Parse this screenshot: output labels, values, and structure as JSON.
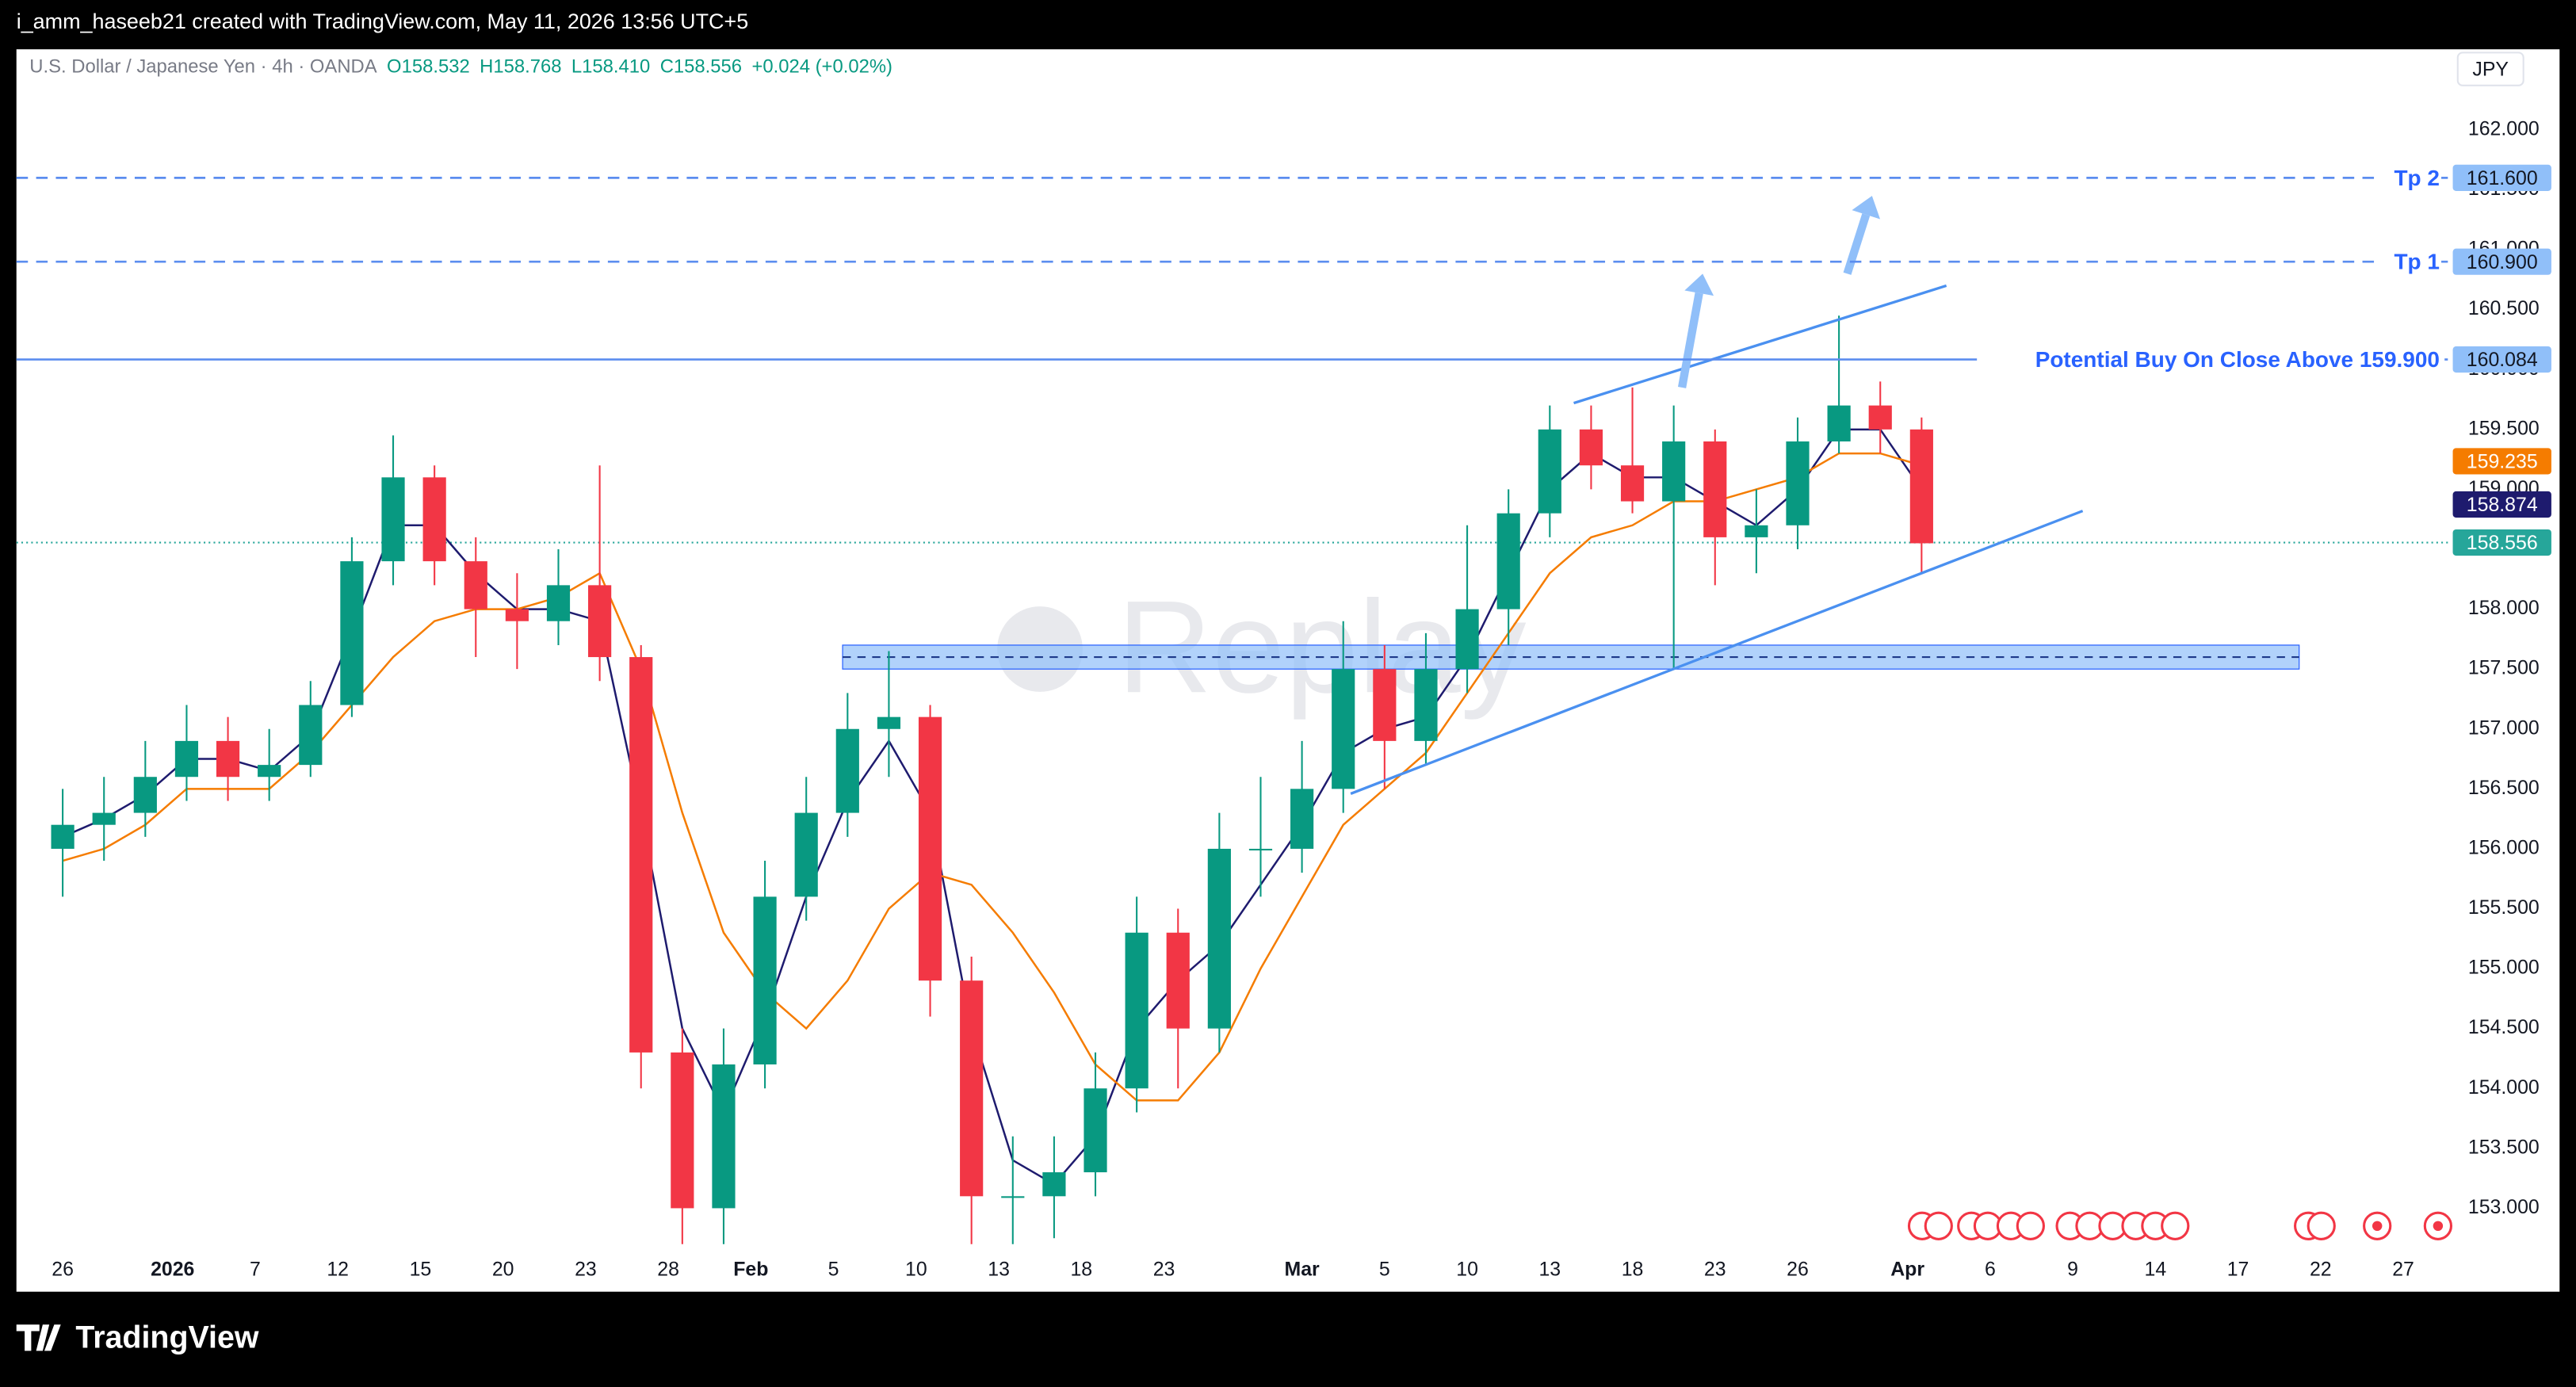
{
  "header": "i_amm_haseeb21 created with TradingView.com, May 11, 2026 13:56 UTC+5",
  "footer": "TradingView",
  "chart_data": {
    "type": "candlestick",
    "legend": {
      "symbol": "U.S. Dollar / Japanese Yen · 4h · OANDA",
      "open": "O158.532",
      "high": "H158.768",
      "low": "L158.410",
      "close": "C158.556",
      "change": "+0.024 (+0.02%)"
    },
    "currency": "JPY",
    "watermark": "Replay",
    "up_color": "#089981",
    "down_color": "#f23645",
    "x": [
      0,
      0.5,
      1,
      1.5,
      2,
      2.5,
      3,
      3.5,
      4,
      4.5,
      5,
      5.5,
      6,
      6.5,
      7,
      7.5,
      8,
      8.5,
      9,
      9.5,
      10,
      10.5,
      11,
      11.5,
      12,
      12.5,
      13,
      13.5,
      14,
      14.5,
      15,
      15.5,
      16,
      16.5,
      17,
      17.5,
      18,
      18.5,
      19,
      19.5,
      20,
      20.5,
      21,
      21.5,
      22,
      22.5
    ],
    "open": [
      156.0,
      156.2,
      156.3,
      156.6,
      156.9,
      156.6,
      156.7,
      157.2,
      158.4,
      159.1,
      158.4,
      158.0,
      157.9,
      158.2,
      157.6,
      154.3,
      153.0,
      154.2,
      155.6,
      156.3,
      157.0,
      157.1,
      154.9,
      153.1,
      153.1,
      153.3,
      154.0,
      155.3,
      154.5,
      156.0,
      156.0,
      156.5,
      157.5,
      156.9,
      157.5,
      158.0,
      158.8,
      159.5,
      159.2,
      158.9,
      159.4,
      158.6,
      158.7,
      159.4,
      159.7,
      159.5
    ],
    "high": [
      156.5,
      156.6,
      156.9,
      157.2,
      157.1,
      157.0,
      157.4,
      158.6,
      159.45,
      159.2,
      158.6,
      158.3,
      158.5,
      159.2,
      157.7,
      154.5,
      154.5,
      155.9,
      156.6,
      157.3,
      157.65,
      157.2,
      155.1,
      153.6,
      153.6,
      154.3,
      155.6,
      155.5,
      156.3,
      156.6,
      156.9,
      157.9,
      157.7,
      157.8,
      158.7,
      159.0,
      159.7,
      159.7,
      159.85,
      159.7,
      159.5,
      159.0,
      159.6,
      160.45,
      159.9,
      159.6
    ],
    "low": [
      155.6,
      155.9,
      156.1,
      156.4,
      156.4,
      156.4,
      156.6,
      157.1,
      158.2,
      158.2,
      157.6,
      157.5,
      157.7,
      157.4,
      154.0,
      152.7,
      152.7,
      154.0,
      155.4,
      156.1,
      156.6,
      154.6,
      152.7,
      152.7,
      152.75,
      153.1,
      153.8,
      154.0,
      154.3,
      155.6,
      155.8,
      156.3,
      156.5,
      156.7,
      157.3,
      157.7,
      158.6,
      159.0,
      158.8,
      157.5,
      158.2,
      158.3,
      158.5,
      159.3,
      159.3,
      158.3
    ],
    "close": [
      156.2,
      156.3,
      156.6,
      156.9,
      156.6,
      156.7,
      157.2,
      158.4,
      159.1,
      158.4,
      158.0,
      157.9,
      158.2,
      157.6,
      154.3,
      153.0,
      154.2,
      155.6,
      156.3,
      157.0,
      157.1,
      154.9,
      153.1,
      153.1,
      153.3,
      154.0,
      155.3,
      154.5,
      156.0,
      156.0,
      156.5,
      157.5,
      156.9,
      157.5,
      158.0,
      158.8,
      159.5,
      159.2,
      158.9,
      159.4,
      158.6,
      158.7,
      159.4,
      159.7,
      159.5,
      158.55
    ],
    "series": [
      {
        "color": "#1e1b6e",
        "values": [
          156.1,
          156.25,
          156.45,
          156.75,
          156.75,
          156.65,
          156.95,
          157.8,
          158.7,
          158.7,
          158.3,
          158.0,
          158.0,
          157.9,
          156.3,
          154.5,
          153.8,
          154.6,
          155.6,
          156.4,
          156.9,
          156.3,
          154.5,
          153.4,
          153.2,
          153.6,
          154.5,
          154.9,
          155.2,
          155.7,
          156.2,
          156.8,
          157.0,
          157.1,
          157.6,
          158.3,
          159.0,
          159.3,
          159.1,
          159.1,
          158.9,
          158.7,
          159.0,
          159.5,
          159.5,
          159.0
        ]
      },
      {
        "color": "#f57c00",
        "values": [
          155.9,
          156.0,
          156.2,
          156.5,
          156.5,
          156.5,
          156.8,
          157.2,
          157.6,
          157.9,
          158.0,
          158.0,
          158.1,
          158.3,
          157.5,
          156.3,
          155.3,
          154.8,
          154.5,
          154.9,
          155.5,
          155.8,
          155.7,
          155.3,
          154.8,
          154.2,
          153.9,
          153.9,
          154.3,
          155.0,
          155.6,
          156.2,
          156.5,
          156.8,
          157.3,
          157.8,
          158.3,
          158.6,
          158.7,
          158.9,
          158.9,
          159.0,
          159.1,
          159.3,
          159.3,
          159.2
        ]
      }
    ],
    "xlim": [
      -0.56,
      28.87
    ],
    "ylim": [
      152.66,
      162.33
    ],
    "xticks": [
      {
        "value": 0,
        "label": "26"
      },
      {
        "value": 1.33,
        "label": "2026"
      },
      {
        "value": 2.33,
        "label": "7"
      },
      {
        "value": 3.33,
        "label": "12"
      },
      {
        "value": 4.33,
        "label": "15"
      },
      {
        "value": 5.33,
        "label": "20"
      },
      {
        "value": 6.33,
        "label": "23"
      },
      {
        "value": 7.33,
        "label": "28"
      },
      {
        "value": 8.33,
        "label": "Feb"
      },
      {
        "value": 9.33,
        "label": "5"
      },
      {
        "value": 10.33,
        "label": "10"
      },
      {
        "value": 11.33,
        "label": "13"
      },
      {
        "value": 12.33,
        "label": "18"
      },
      {
        "value": 13.33,
        "label": "23"
      },
      {
        "value": 15,
        "label": "Mar"
      },
      {
        "value": 16,
        "label": "5"
      },
      {
        "value": 17,
        "label": "10"
      },
      {
        "value": 18,
        "label": "13"
      },
      {
        "value": 19,
        "label": "18"
      },
      {
        "value": 20,
        "label": "23"
      },
      {
        "value": 21,
        "label": "26"
      },
      {
        "value": 22.33,
        "label": "Apr"
      },
      {
        "value": 23.33,
        "label": "6"
      },
      {
        "value": 24.33,
        "label": "9"
      },
      {
        "value": 25.33,
        "label": "14"
      },
      {
        "value": 26.33,
        "label": "17"
      },
      {
        "value": 27.33,
        "label": "22"
      },
      {
        "value": 28.33,
        "label": "27"
      }
    ],
    "yticks": [
      {
        "value": 153,
        "label": "153.000"
      },
      {
        "value": 153.5,
        "label": "153.500"
      },
      {
        "value": 154,
        "label": "154.000"
      },
      {
        "value": 154.5,
        "label": "154.500"
      },
      {
        "value": 155,
        "label": "155.000"
      },
      {
        "value": 155.5,
        "label": "155.500"
      },
      {
        "value": 156,
        "label": "156.000"
      },
      {
        "value": 156.5,
        "label": "156.500"
      },
      {
        "value": 157,
        "label": "157.000"
      },
      {
        "value": 157.5,
        "label": "157.500"
      },
      {
        "value": 158,
        "label": "158.000"
      },
      {
        "value": 158.5,
        "label": "158.500"
      },
      {
        "value": 159,
        "label": "159.000"
      },
      {
        "value": 159.5,
        "label": "159.500"
      },
      {
        "value": 160,
        "label": "160.000"
      },
      {
        "value": 160.5,
        "label": "160.500"
      },
      {
        "value": 161,
        "label": "161.000"
      },
      {
        "value": 161.5,
        "label": "161.500"
      },
      {
        "value": 162,
        "label": "162.000"
      }
    ],
    "levels": [
      {
        "name": "Tp 2",
        "value": 161.6,
        "label": "161.600",
        "dashed": true
      },
      {
        "name": "Tp 1",
        "value": 160.9,
        "label": "160.900",
        "dashed": true
      },
      {
        "name": "Potential Buy On Close Above 159.900",
        "value": 160.084,
        "label": "160.084",
        "dashed": false
      }
    ],
    "badges": [
      {
        "value": 159.235,
        "label": "159.235",
        "color": "#f57c00"
      },
      {
        "value": 158.874,
        "label": "158.874",
        "color": "#1e1b6e"
      },
      {
        "value": 158.556,
        "label": "158.556",
        "color": "#26a69a"
      }
    ],
    "zone": {
      "x": [
        9.44,
        27.07
      ],
      "y": [
        157.5,
        157.7
      ],
      "mid": 157.6
    },
    "trendlines": [
      {
        "x": [
          18.29,
          22.8
        ],
        "y": [
          159.72,
          160.7
        ]
      },
      {
        "x": [
          15.59,
          24.45
        ],
        "y": [
          156.46,
          158.82
        ]
      }
    ],
    "arrows": [
      {
        "x": [
          19.6,
          19.85
        ],
        "y": [
          159.85,
          160.8
        ]
      },
      {
        "x": [
          21.6,
          21.9
        ],
        "y": [
          160.8,
          161.45
        ]
      }
    ]
  }
}
